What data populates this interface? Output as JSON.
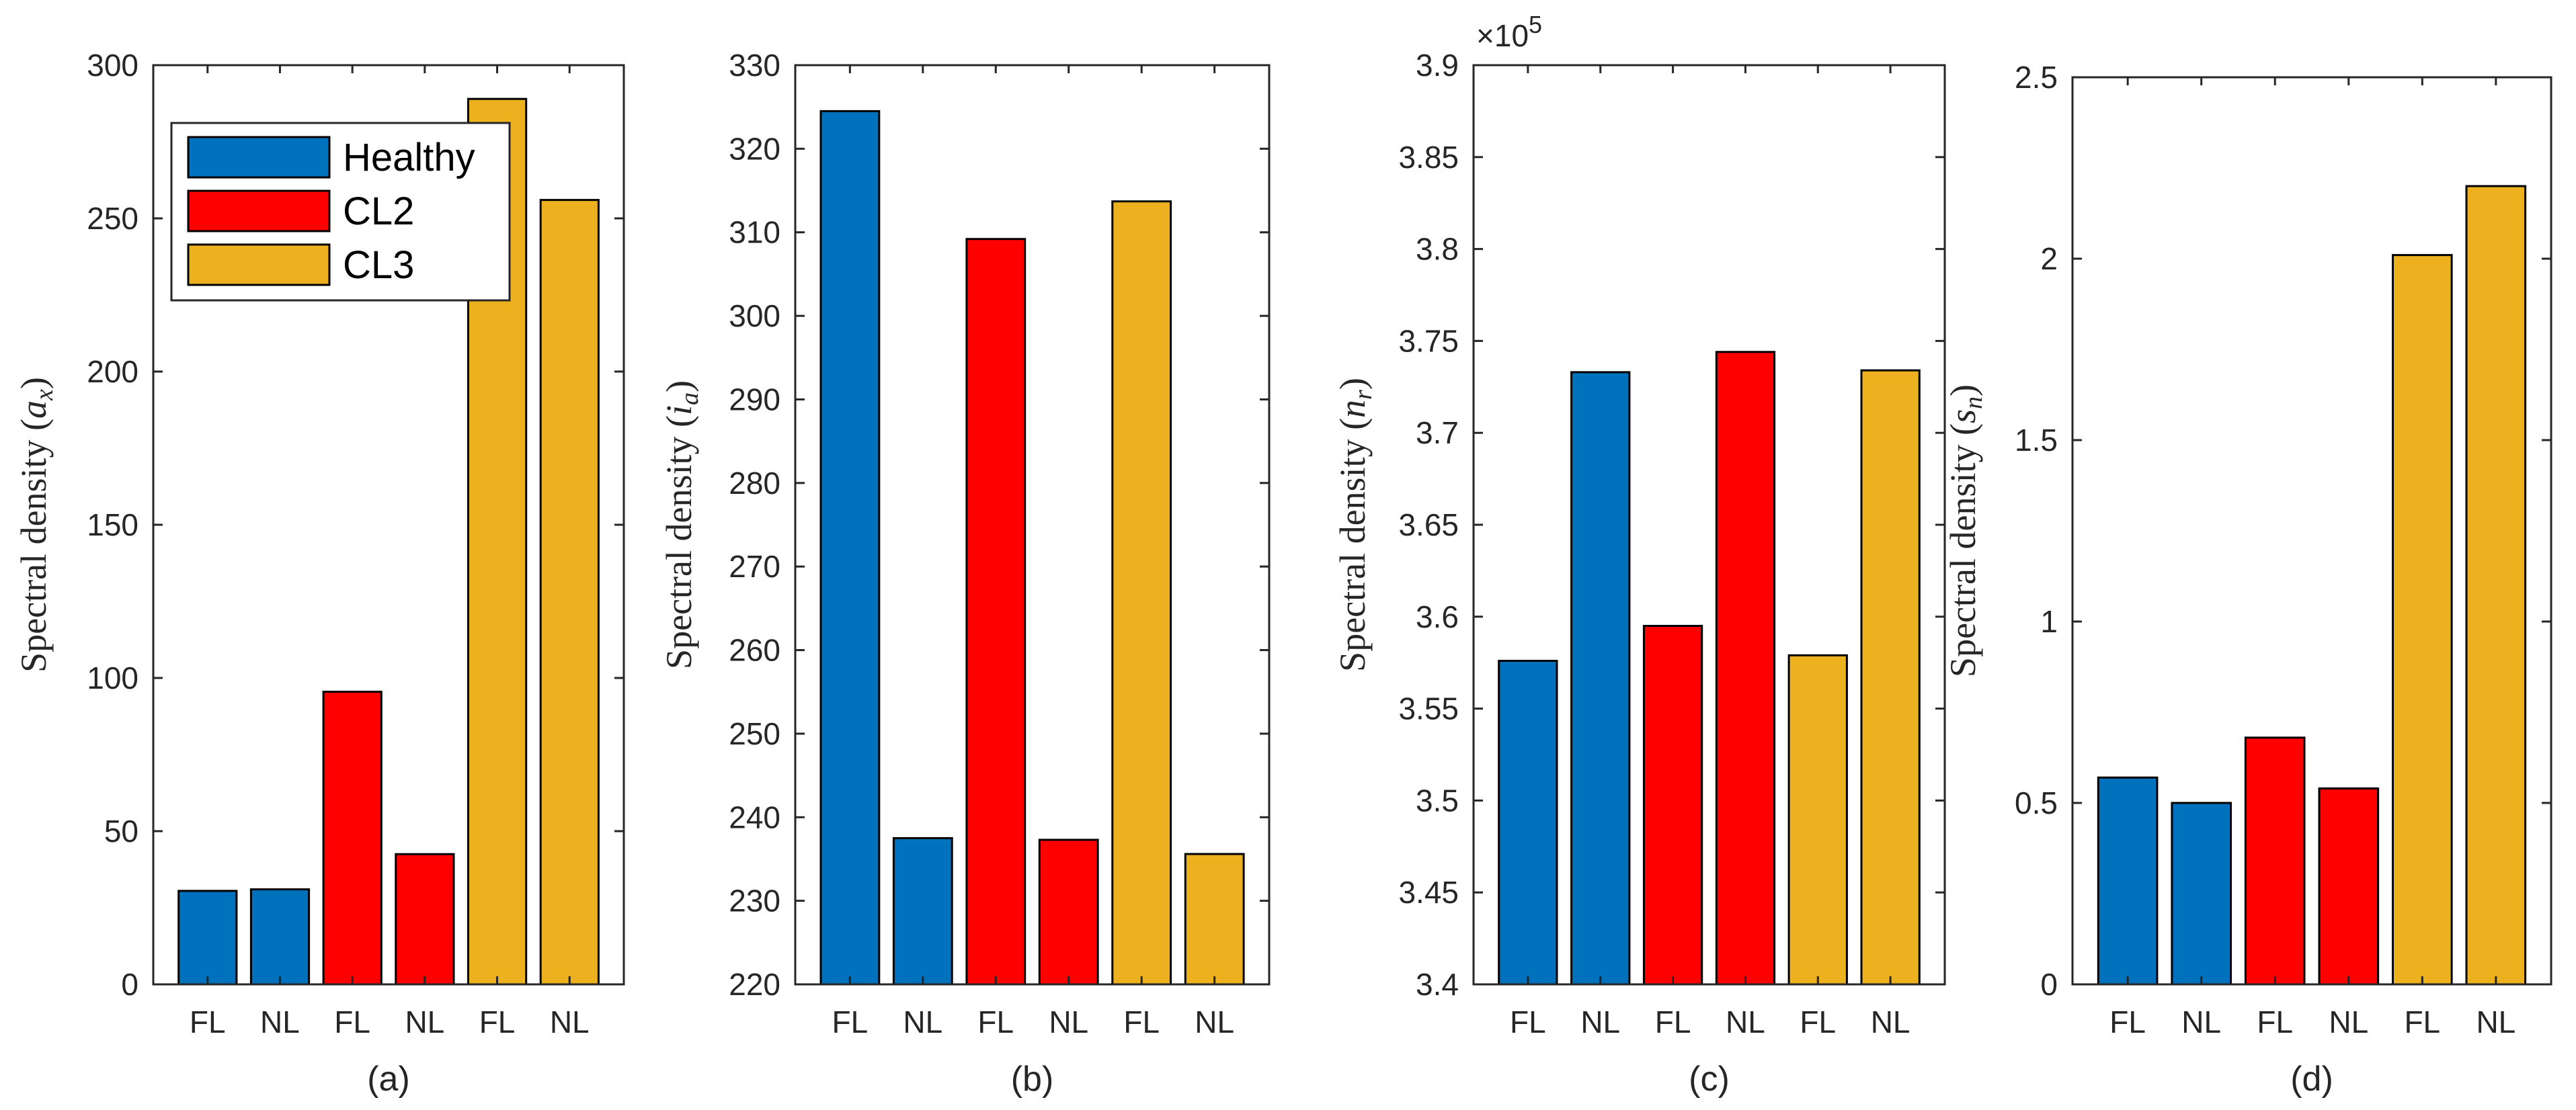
{
  "colors": {
    "Healthy": "#0072BD",
    "CL2": "#FF0000",
    "CL3": "#EDB120"
  },
  "legend": [
    "Healthy",
    "CL2",
    "CL3"
  ],
  "chart_data": [
    {
      "type": "bar",
      "caption": "(a)",
      "ylabel_prefix": "Spectral density (",
      "ylabel_var": "a",
      "ylabel_sub": "x",
      "ylabel_suffix": ")",
      "categories": [
        "FL",
        "NL",
        "FL",
        "NL",
        "FL",
        "NL"
      ],
      "groups": [
        "Healthy",
        "Healthy",
        "CL2",
        "CL2",
        "CL3",
        "CL3"
      ],
      "values": [
        30.5,
        31,
        95.5,
        42.5,
        289,
        256
      ],
      "ylim": [
        0,
        300
      ],
      "yticks": [
        0,
        50,
        100,
        150,
        200,
        250,
        300
      ],
      "ytick_labels": [
        "0",
        "50",
        "100",
        "150",
        "200",
        "250",
        "300"
      ],
      "exponent_label": "",
      "legend": true
    },
    {
      "type": "bar",
      "caption": "(b)",
      "ylabel_prefix": "Spectral density (",
      "ylabel_var": "i",
      "ylabel_sub": "a",
      "ylabel_suffix": ")",
      "categories": [
        "FL",
        "NL",
        "FL",
        "NL",
        "FL",
        "NL"
      ],
      "groups": [
        "Healthy",
        "Healthy",
        "CL2",
        "CL2",
        "CL3",
        "CL3"
      ],
      "values": [
        324.5,
        237.5,
        309.2,
        237.3,
        313.7,
        235.6
      ],
      "ylim": [
        220,
        330
      ],
      "yticks": [
        220,
        230,
        240,
        250,
        260,
        270,
        280,
        290,
        300,
        310,
        320,
        330
      ],
      "ytick_labels": [
        "220",
        "230",
        "240",
        "250",
        "260",
        "270",
        "280",
        "290",
        "300",
        "310",
        "320",
        "330"
      ],
      "exponent_label": "",
      "legend": false
    },
    {
      "type": "bar",
      "caption": "(c)",
      "ylabel_prefix": "Spectral density (",
      "ylabel_var": "n",
      "ylabel_sub": "r",
      "ylabel_suffix": ")",
      "categories": [
        "FL",
        "NL",
        "FL",
        "NL",
        "FL",
        "NL"
      ],
      "groups": [
        "Healthy",
        "Healthy",
        "CL2",
        "CL2",
        "CL3",
        "CL3"
      ],
      "values": [
        3.576,
        3.733,
        3.595,
        3.744,
        3.579,
        3.734
      ],
      "ylim": [
        3.4,
        3.9
      ],
      "yticks": [
        3.4,
        3.45,
        3.5,
        3.55,
        3.6,
        3.65,
        3.7,
        3.75,
        3.8,
        3.85,
        3.9
      ],
      "ytick_labels": [
        "3.4",
        "3.45",
        "3.5",
        "3.55",
        "3.6",
        "3.65",
        "3.7",
        "3.75",
        "3.8",
        "3.85",
        "3.9"
      ],
      "exponent_label": "×10",
      "exponent_power": "5",
      "legend": false
    },
    {
      "type": "bar",
      "caption": "(d)",
      "ylabel_prefix": "Spectral density (",
      "ylabel_var": "s",
      "ylabel_sub": "n",
      "ylabel_suffix": ")",
      "categories": [
        "FL",
        "NL",
        "FL",
        "NL",
        "FL",
        "NL"
      ],
      "groups": [
        "Healthy",
        "Healthy",
        "CL2",
        "CL2",
        "CL3",
        "CL3"
      ],
      "values": [
        0.57,
        0.5,
        0.68,
        0.54,
        2.01,
        2.2
      ],
      "ylim": [
        0,
        2.5
      ],
      "yticks": [
        0,
        0.5,
        1,
        1.5,
        2,
        2.5
      ],
      "ytick_labels": [
        "0",
        "0.5",
        "1",
        "1.5",
        "2",
        "2.5"
      ],
      "exponent_label": "",
      "legend": false
    }
  ]
}
